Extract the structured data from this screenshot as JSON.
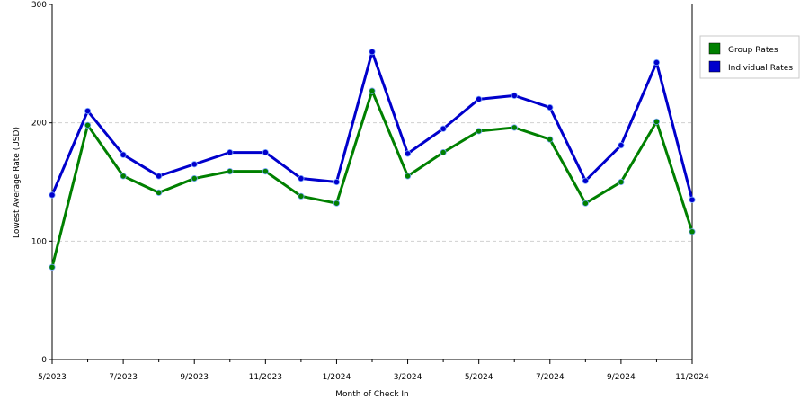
{
  "chart_data": {
    "type": "line",
    "title": "",
    "xlabel": "Month of Check In",
    "ylabel": "Lowest Average Rate (USD)",
    "ylim": [
      0,
      300
    ],
    "yticks": [
      0,
      100,
      200,
      300
    ],
    "grid": "dashed horizontal at y ticks",
    "legend_position": "right",
    "x": [
      "5/2023",
      "6/2023",
      "7/2023",
      "8/2023",
      "9/2023",
      "10/2023",
      "11/2023",
      "12/2023",
      "1/2024",
      "2/2024",
      "3/2024",
      "4/2024",
      "5/2024",
      "6/2024",
      "7/2024",
      "8/2024",
      "9/2024",
      "10/2024",
      "11/2024"
    ],
    "x_tick_labels": [
      "5/2023",
      "7/2023",
      "9/2023",
      "11/2023",
      "1/2024",
      "3/2024",
      "5/2024",
      "7/2024",
      "9/2024",
      "11/2024"
    ],
    "series": [
      {
        "name": "Group Rates",
        "color": "#008000",
        "values": [
          78,
          198,
          155,
          141,
          153,
          159,
          159,
          138,
          132,
          227,
          155,
          175,
          193,
          196,
          186,
          132,
          150,
          201,
          108
        ]
      },
      {
        "name": "Individual Rates",
        "color": "#0000cc",
        "values": [
          139,
          210,
          173,
          155,
          165,
          175,
          175,
          153,
          150,
          260,
          174,
          195,
          220,
          223,
          213,
          151,
          181,
          251,
          135
        ]
      }
    ]
  }
}
